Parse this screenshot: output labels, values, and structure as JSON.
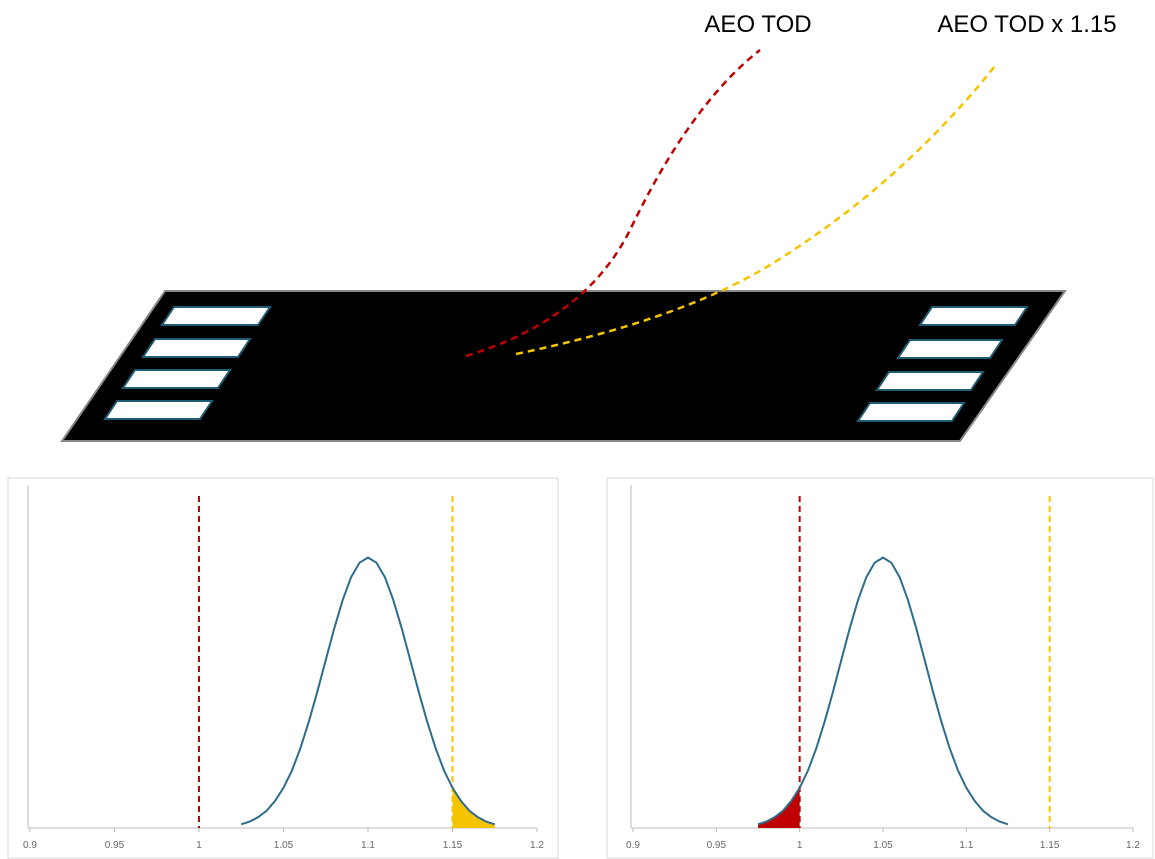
{
  "labels": {
    "aeo_tod": "AEO TOD",
    "aeo_tod_115": "AEO TOD x 1.15"
  },
  "chart_data": [
    {
      "type": "line",
      "xlim": [
        0.9,
        1.2
      ],
      "xticks": [
        0.9,
        0.95,
        1,
        1.05,
        1.1,
        1.15,
        1.2
      ],
      "ylim": [
        0,
        1
      ],
      "x": [
        1.025,
        1.03,
        1.035,
        1.04,
        1.045,
        1.05,
        1.055,
        1.06,
        1.065,
        1.07,
        1.075,
        1.08,
        1.085,
        1.09,
        1.095,
        1.1,
        1.105,
        1.11,
        1.115,
        1.12,
        1.125,
        1.13,
        1.135,
        1.14,
        1.145,
        1.15,
        1.155,
        1.16,
        1.165,
        1.17,
        1.175
      ],
      "series": [
        {
          "color": "#2f6b8a",
          "values": [
            0.011,
            0.019,
            0.032,
            0.051,
            0.08,
            0.119,
            0.17,
            0.236,
            0.315,
            0.403,
            0.497,
            0.59,
            0.674,
            0.742,
            0.785,
            0.8,
            0.785,
            0.742,
            0.674,
            0.59,
            0.497,
            0.403,
            0.315,
            0.236,
            0.17,
            0.119,
            0.08,
            0.051,
            0.032,
            0.019,
            0.011
          ]
        }
      ],
      "vlines": [
        {
          "x": 1,
          "color": "#c00000"
        },
        {
          "x": 1.15,
          "color": "#f5c400"
        }
      ],
      "shade": {
        "from": 1.15,
        "to": 1.175,
        "color": "#f5c400"
      }
    },
    {
      "type": "line",
      "xlim": [
        0.9,
        1.2
      ],
      "xticks": [
        0.9,
        0.95,
        1,
        1.05,
        1.1,
        1.15,
        1.2
      ],
      "ylim": [
        0,
        1
      ],
      "x": [
        0.975,
        0.98,
        0.985,
        0.99,
        0.995,
        1,
        1.005,
        1.01,
        1.015,
        1.02,
        1.025,
        1.03,
        1.035,
        1.04,
        1.045,
        1.05,
        1.055,
        1.06,
        1.065,
        1.07,
        1.075,
        1.08,
        1.085,
        1.09,
        1.095,
        1.1,
        1.105,
        1.11,
        1.115,
        1.12,
        1.125
      ],
      "series": [
        {
          "color": "#2f6b8a",
          "values": [
            0.011,
            0.019,
            0.032,
            0.051,
            0.08,
            0.119,
            0.17,
            0.236,
            0.315,
            0.403,
            0.497,
            0.59,
            0.674,
            0.742,
            0.785,
            0.8,
            0.785,
            0.742,
            0.674,
            0.59,
            0.497,
            0.403,
            0.315,
            0.236,
            0.17,
            0.119,
            0.08,
            0.051,
            0.032,
            0.019,
            0.011
          ]
        }
      ],
      "vlines": [
        {
          "x": 1,
          "color": "#c00000"
        },
        {
          "x": 1.15,
          "color": "#f5c400"
        }
      ],
      "shade": {
        "from": 0.975,
        "to": 1,
        "color": "#c00000"
      }
    }
  ]
}
